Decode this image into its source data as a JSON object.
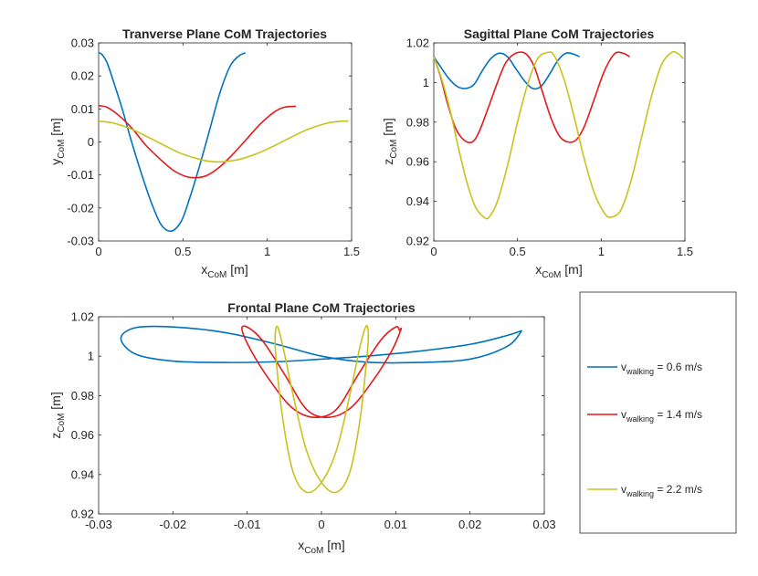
{
  "figure": {
    "legend": {
      "entries": [
        {
          "prefix": "v",
          "sub": "walking",
          "suffix": " = 0.6 m/s",
          "color": "#0072BD"
        },
        {
          "prefix": "v",
          "sub": "walking",
          "suffix": " = 1.4 m/s",
          "color": "#E41A1C"
        },
        {
          "prefix": "v",
          "sub": "walking",
          "suffix": " = 2.2 m/s",
          "color": "#C9C21C"
        }
      ]
    }
  },
  "chart_data": [
    {
      "id": "transverse",
      "type": "line",
      "title": "Tranverse Plane CoM Trajectories",
      "xlabel": {
        "main": "x",
        "sub": "CoM",
        "unit": " [m]"
      },
      "ylabel": {
        "main": "y",
        "sub": "CoM",
        "unit": " [m]"
      },
      "xlim": [
        0,
        1.5
      ],
      "ylim": [
        -0.03,
        0.03
      ],
      "xticks": [
        0,
        0.5,
        1,
        1.5
      ],
      "xtick_labels": [
        "0",
        "0.5",
        "1",
        "1.5"
      ],
      "yticks": [
        -0.03,
        -0.02,
        -0.01,
        0,
        0.01,
        0.02,
        0.03
      ],
      "ytick_labels": [
        "-0.03",
        "-0.02",
        "-0.01",
        "0",
        "0.01",
        "0.02",
        "0.03"
      ],
      "series": [
        {
          "name": "v = 0.6 m/s",
          "color": "#0072BD",
          "x": [
            0,
            0.02,
            0.05,
            0.09,
            0.14,
            0.19,
            0.25,
            0.31,
            0.37,
            0.43,
            0.49,
            0.54,
            0.6,
            0.66,
            0.72,
            0.78,
            0.83,
            0.87
          ],
          "y": [
            0.027,
            0.0265,
            0.024,
            0.018,
            0.01,
            0.001,
            -0.009,
            -0.018,
            -0.025,
            -0.027,
            -0.024,
            -0.017,
            -0.007,
            0.004,
            0.015,
            0.023,
            0.026,
            0.027
          ]
        },
        {
          "name": "v = 1.4 m/s",
          "color": "#E41A1C",
          "x": [
            0,
            0.05,
            0.12,
            0.2,
            0.28,
            0.36,
            0.44,
            0.52,
            0.58,
            0.64,
            0.72,
            0.8,
            0.88,
            0.96,
            1.04,
            1.1,
            1.17
          ],
          "y": [
            0.011,
            0.0105,
            0.008,
            0.004,
            -0.001,
            -0.005,
            -0.0085,
            -0.0105,
            -0.0108,
            -0.0102,
            -0.0075,
            -0.0035,
            0.001,
            0.0055,
            0.009,
            0.0105,
            0.0108
          ]
        },
        {
          "name": "v = 2.2 m/s",
          "color": "#C9C21C",
          "x": [
            0,
            0.08,
            0.18,
            0.28,
            0.38,
            0.48,
            0.58,
            0.66,
            0.74,
            0.84,
            0.94,
            1.04,
            1.14,
            1.24,
            1.34,
            1.42,
            1.48
          ],
          "y": [
            0.0063,
            0.0058,
            0.0042,
            0.0018,
            -0.0008,
            -0.0033,
            -0.005,
            -0.0059,
            -0.006,
            -0.0052,
            -0.0035,
            -0.0012,
            0.0014,
            0.0038,
            0.0055,
            0.0062,
            0.0063
          ]
        }
      ]
    },
    {
      "id": "sagittal",
      "type": "line",
      "title": "Sagittal Plane CoM Trajectories",
      "xlabel": {
        "main": "x",
        "sub": "CoM",
        "unit": " [m]"
      },
      "ylabel": {
        "main": "z",
        "sub": "CoM",
        "unit": " [m]"
      },
      "xlim": [
        0,
        1.5
      ],
      "ylim": [
        0.92,
        1.02
      ],
      "xticks": [
        0,
        0.5,
        1,
        1.5
      ],
      "xtick_labels": [
        "0",
        "0.5",
        "1",
        "1.5"
      ],
      "yticks": [
        0.92,
        0.94,
        0.96,
        0.98,
        1.0,
        1.02
      ],
      "ytick_labels": [
        "0.92",
        "0.94",
        "0.96",
        "0.98",
        "1",
        "1.02"
      ],
      "series": [
        {
          "name": "v = 0.6 m/s",
          "color": "#0072BD",
          "x": [
            0,
            0.04,
            0.09,
            0.14,
            0.19,
            0.24,
            0.29,
            0.34,
            0.39,
            0.44,
            0.49,
            0.54,
            0.59,
            0.64,
            0.69,
            0.74,
            0.79,
            0.84,
            0.87
          ],
          "y": [
            1.013,
            1.008,
            1.002,
            0.998,
            0.997,
            0.999,
            1.006,
            1.012,
            1.0148,
            1.013,
            1.007,
            1.001,
            0.997,
            0.998,
            1.004,
            1.011,
            1.0148,
            1.0142,
            1.013
          ]
        },
        {
          "name": "v = 1.4 m/s",
          "color": "#E41A1C",
          "x": [
            0,
            0.04,
            0.08,
            0.13,
            0.18,
            0.23,
            0.27,
            0.32,
            0.38,
            0.43,
            0.49,
            0.55,
            0.6,
            0.65,
            0.7,
            0.75,
            0.8,
            0.85,
            0.9,
            0.96,
            1.02,
            1.08,
            1.13,
            1.17
          ],
          "y": [
            1.013,
            1.003,
            0.99,
            0.977,
            0.971,
            0.97,
            0.975,
            0.986,
            1.0,
            1.01,
            1.0148,
            1.0145,
            1.008,
            0.995,
            0.982,
            0.973,
            0.97,
            0.971,
            0.978,
            0.992,
            1.006,
            1.0145,
            1.0148,
            1.013
          ]
        },
        {
          "name": "v = 2.2 m/s",
          "color": "#C9C21C",
          "x": [
            0,
            0.05,
            0.1,
            0.15,
            0.2,
            0.25,
            0.3,
            0.33,
            0.38,
            0.44,
            0.5,
            0.56,
            0.62,
            0.68,
            0.72,
            0.78,
            0.84,
            0.9,
            0.96,
            1.02,
            1.06,
            1.12,
            1.18,
            1.24,
            1.3,
            1.36,
            1.42,
            1.46,
            1.49
          ],
          "y": [
            1.013,
            1.001,
            0.985,
            0.966,
            0.949,
            0.937,
            0.932,
            0.932,
            0.94,
            0.958,
            0.98,
            0.999,
            1.012,
            1.0152,
            1.0135,
            1.001,
            0.982,
            0.961,
            0.944,
            0.934,
            0.932,
            0.936,
            0.951,
            0.972,
            0.993,
            1.009,
            1.0152,
            1.0145,
            1.012
          ]
        }
      ]
    },
    {
      "id": "frontal",
      "type": "line",
      "title": "Frontal Plane CoM Trajectories",
      "xlabel": {
        "main": "x",
        "sub": "CoM",
        "unit": " [m]"
      },
      "ylabel": {
        "main": "z",
        "sub": "CoM",
        "unit": " [m]"
      },
      "xlim": [
        -0.03,
        0.03
      ],
      "ylim": [
        0.92,
        1.02
      ],
      "xticks": [
        -0.03,
        -0.02,
        -0.01,
        0,
        0.01,
        0.02,
        0.03
      ],
      "xtick_labels": [
        "-0.03",
        "-0.02",
        "-0.01",
        "0",
        "0.01",
        "0.02",
        "0.03"
      ],
      "yticks": [
        0.92,
        0.94,
        0.96,
        0.98,
        1.0,
        1.02
      ],
      "ytick_labels": [
        "0.92",
        "0.94",
        "0.96",
        "0.98",
        "1",
        "1.02"
      ],
      "series": [
        {
          "name": "v = 0.6 m/s",
          "color": "#0072BD",
          "x": [
            0.027,
            0.025,
            0.02,
            0.013,
            0.006,
            0.0,
            -0.006,
            -0.013,
            -0.02,
            -0.025,
            -0.027,
            -0.025,
            -0.02,
            -0.013,
            -0.006,
            0.0,
            0.006,
            0.013,
            0.02,
            0.025,
            0.027
          ],
          "y": [
            1.013,
            1.0105,
            1.006,
            1.0025,
            1.0,
            0.9985,
            0.9972,
            0.9968,
            0.9975,
            1.001,
            1.009,
            1.0145,
            1.0148,
            1.012,
            1.006,
            1.0,
            0.997,
            0.9968,
            0.9985,
            1.005,
            1.013
          ]
        },
        {
          "name": "v = 1.4 m/s",
          "color": "#E41A1C",
          "x": [
            0.0105,
            0.01,
            0.008,
            0.005,
            0.002,
            -0.001,
            -0.004,
            -0.007,
            -0.0095,
            -0.0107,
            -0.01,
            -0.008,
            -0.005,
            -0.002,
            0.001,
            0.004,
            0.007,
            0.0095,
            0.0107,
            0.0105
          ],
          "y": [
            1.013,
            1.0148,
            1.0082,
            0.991,
            0.973,
            0.969,
            0.974,
            0.988,
            1.003,
            1.0135,
            1.0148,
            1.0082,
            0.991,
            0.973,
            0.969,
            0.974,
            0.988,
            1.003,
            1.0135,
            1.013
          ]
        },
        {
          "name": "v = 2.2 m/s",
          "color": "#C9C21C",
          "x": [
            0.0063,
            0.006,
            0.0052,
            0.0038,
            0.002,
            0.0,
            -0.002,
            -0.0038,
            -0.0052,
            -0.0062,
            -0.006,
            -0.0052,
            -0.0038,
            -0.002,
            0.0,
            0.002,
            0.0038,
            0.0052,
            0.0062,
            0.0063
          ],
          "y": [
            1.013,
            1.0152,
            1.005,
            0.98,
            0.952,
            0.936,
            0.931,
            0.941,
            0.968,
            1.003,
            1.0152,
            1.005,
            0.98,
            0.952,
            0.936,
            0.931,
            0.941,
            0.968,
            1.003,
            1.013
          ]
        }
      ]
    }
  ]
}
